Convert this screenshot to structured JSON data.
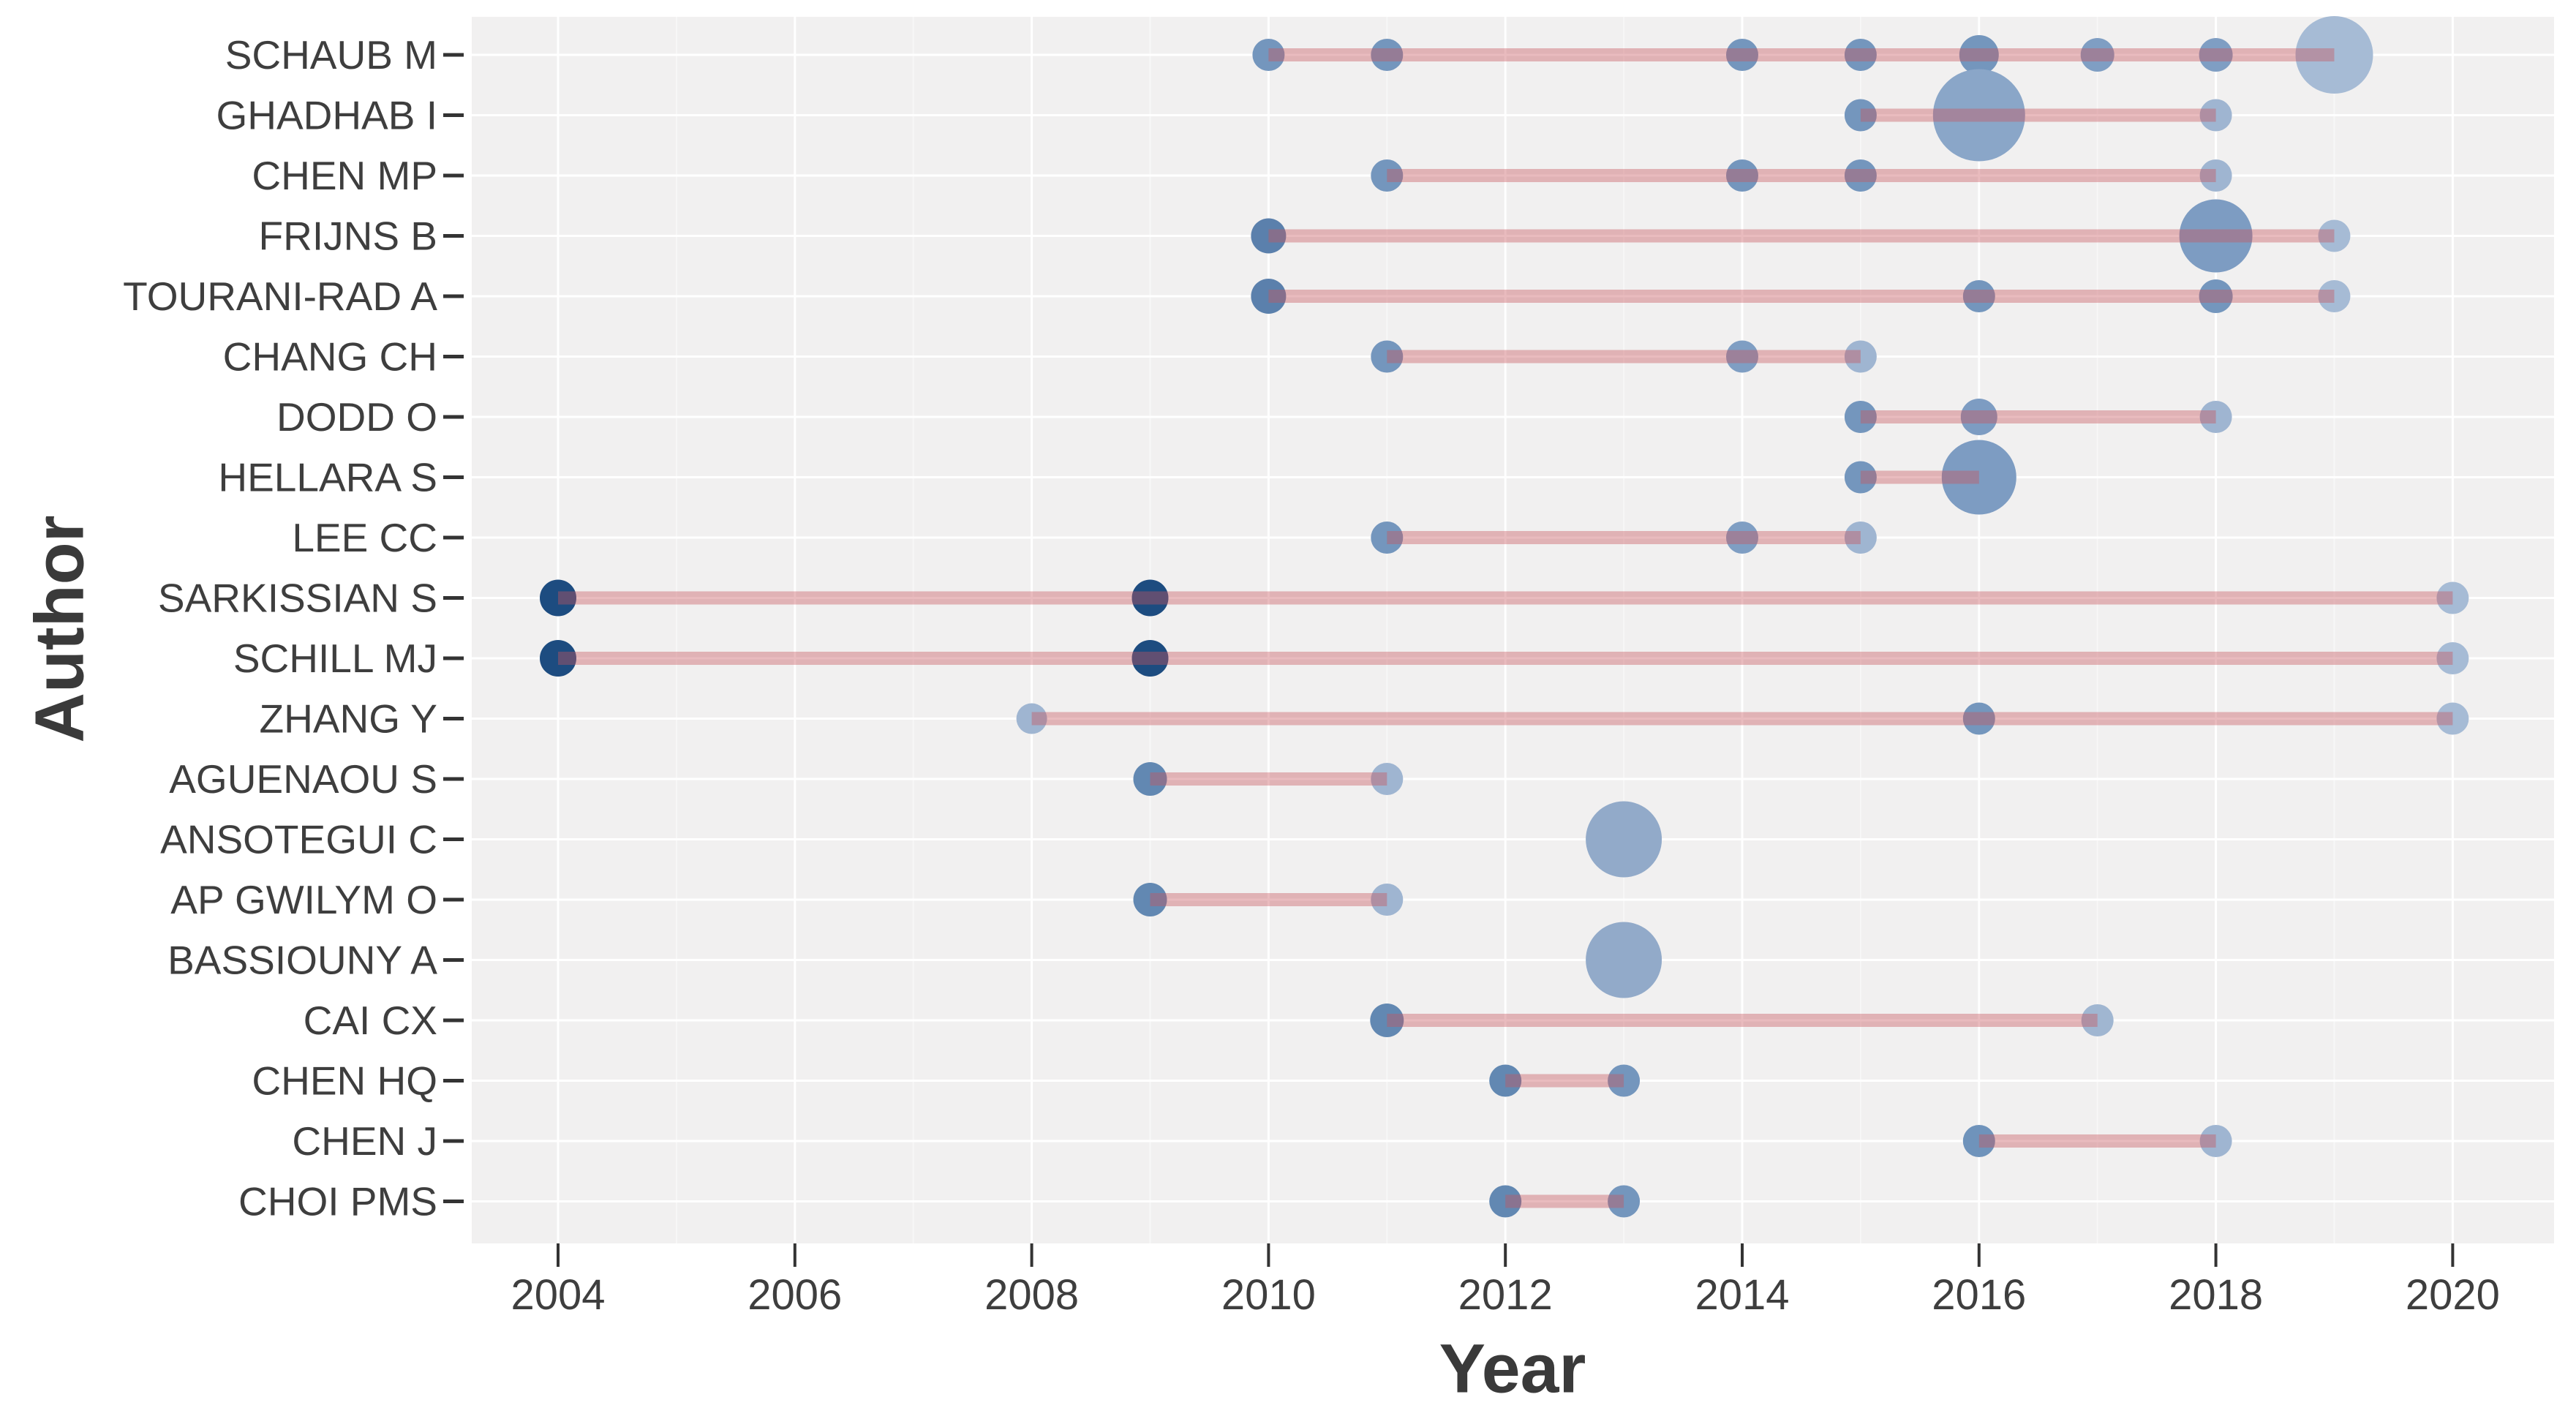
{
  "chart_data": {
    "type": "bubble_timeline",
    "title": "",
    "xlabel": "Year",
    "ylabel": "Author",
    "x_ticks": [
      2004,
      2006,
      2008,
      2010,
      2012,
      2014,
      2016,
      2018,
      2020
    ],
    "x_minor_ticks": [
      2005,
      2007,
      2009,
      2011,
      2013,
      2015,
      2017,
      2019
    ],
    "x_range": [
      2003.3,
      2020.9
    ],
    "grid": "white major/minor gridlines on light gray panel",
    "legend_position": "none",
    "authors": [
      {
        "name": "SCHAUB M",
        "span": [
          2010,
          2019
        ],
        "articles": [
          {
            "year": 2010,
            "radius": 22,
            "color": "#7496bd"
          },
          {
            "year": 2011,
            "radius": 22,
            "color": "#7496bd"
          },
          {
            "year": 2014,
            "radius": 22,
            "color": "#7496bd"
          },
          {
            "year": 2015,
            "radius": 22,
            "color": "#7496bd"
          },
          {
            "year": 2016,
            "radius": 27,
            "color": "#7496bd"
          },
          {
            "year": 2017,
            "radius": 23,
            "color": "#7f9ec3"
          },
          {
            "year": 2018,
            "radius": 23,
            "color": "#7f9ec3"
          },
          {
            "year": 2019,
            "radius": 53,
            "color": "#a6bbd5"
          }
        ]
      },
      {
        "name": "GHADHAB I",
        "span": [
          2015,
          2018
        ],
        "articles": [
          {
            "year": 2015,
            "radius": 22,
            "color": "#7496bd"
          },
          {
            "year": 2016,
            "radius": 63,
            "color": "#8aa6c8"
          },
          {
            "year": 2018,
            "radius": 22,
            "color": "#9fb5d1"
          }
        ]
      },
      {
        "name": "CHEN MP",
        "span": [
          2011,
          2018
        ],
        "articles": [
          {
            "year": 2011,
            "radius": 22,
            "color": "#7496bd"
          },
          {
            "year": 2014,
            "radius": 22,
            "color": "#7496bd"
          },
          {
            "year": 2015,
            "radius": 22,
            "color": "#7496bd"
          },
          {
            "year": 2018,
            "radius": 22,
            "color": "#9fb5d1"
          }
        ]
      },
      {
        "name": "FRIJNS B",
        "span": [
          2010,
          2019
        ],
        "articles": [
          {
            "year": 2010,
            "radius": 24,
            "color": "#5b80ac"
          },
          {
            "year": 2018,
            "radius": 50,
            "color": "#7d9cc2"
          },
          {
            "year": 2019,
            "radius": 22,
            "color": "#a6bbd5"
          }
        ]
      },
      {
        "name": "TOURANI-RAD A",
        "span": [
          2010,
          2019
        ],
        "articles": [
          {
            "year": 2010,
            "radius": 24,
            "color": "#5b80ac"
          },
          {
            "year": 2016,
            "radius": 22,
            "color": "#7496bd"
          },
          {
            "year": 2018,
            "radius": 23,
            "color": "#7496bd"
          },
          {
            "year": 2019,
            "radius": 22,
            "color": "#a6bbd5"
          }
        ]
      },
      {
        "name": "CHANG CH",
        "span": [
          2011,
          2015
        ],
        "articles": [
          {
            "year": 2011,
            "radius": 22,
            "color": "#7496bd"
          },
          {
            "year": 2014,
            "radius": 22,
            "color": "#7f9ec3"
          },
          {
            "year": 2015,
            "radius": 22,
            "color": "#9fb5d1"
          }
        ]
      },
      {
        "name": "DODD O",
        "span": [
          2015,
          2018
        ],
        "articles": [
          {
            "year": 2015,
            "radius": 22,
            "color": "#7496bd"
          },
          {
            "year": 2016,
            "radius": 25,
            "color": "#7d9cc2"
          },
          {
            "year": 2018,
            "radius": 22,
            "color": "#9fb5d1"
          }
        ]
      },
      {
        "name": "HELLARA S",
        "span": [
          2015,
          2016
        ],
        "articles": [
          {
            "year": 2015,
            "radius": 22,
            "color": "#7496bd"
          },
          {
            "year": 2016,
            "radius": 51,
            "color": "#7d9cc2"
          }
        ]
      },
      {
        "name": "LEE CC",
        "span": [
          2011,
          2015
        ],
        "articles": [
          {
            "year": 2011,
            "radius": 22,
            "color": "#7496bd"
          },
          {
            "year": 2014,
            "radius": 22,
            "color": "#7f9ec3"
          },
          {
            "year": 2015,
            "radius": 22,
            "color": "#9fb5d1"
          }
        ]
      },
      {
        "name": "SARKISSIAN S",
        "span": [
          2004,
          2020
        ],
        "articles": [
          {
            "year": 2004,
            "radius": 25,
            "color": "#1d4c80"
          },
          {
            "year": 2009,
            "radius": 25,
            "color": "#1d4c80"
          },
          {
            "year": 2020,
            "radius": 22,
            "color": "#a6bbd5"
          }
        ]
      },
      {
        "name": "SCHILL MJ",
        "span": [
          2004,
          2020
        ],
        "articles": [
          {
            "year": 2004,
            "radius": 25,
            "color": "#1d4c80"
          },
          {
            "year": 2009,
            "radius": 25,
            "color": "#1d4c80"
          },
          {
            "year": 2020,
            "radius": 22,
            "color": "#a6bbd5"
          }
        ]
      },
      {
        "name": "ZHANG Y",
        "span": [
          2008,
          2020
        ],
        "articles": [
          {
            "year": 2008,
            "radius": 21,
            "color": "#9fb5d1"
          },
          {
            "year": 2016,
            "radius": 22,
            "color": "#7496bd"
          },
          {
            "year": 2020,
            "radius": 22,
            "color": "#a6bbd5"
          }
        ]
      },
      {
        "name": "AGUENAOU S",
        "span": [
          2009,
          2011
        ],
        "articles": [
          {
            "year": 2009,
            "radius": 23,
            "color": "#6288b2"
          },
          {
            "year": 2011,
            "radius": 22,
            "color": "#9fb5d1"
          }
        ]
      },
      {
        "name": "ANSOTEGUI C",
        "span": null,
        "articles": [
          {
            "year": 2013,
            "radius": 52,
            "color": "#92aac9"
          }
        ]
      },
      {
        "name": "AP GWILYM O",
        "span": [
          2009,
          2011
        ],
        "articles": [
          {
            "year": 2009,
            "radius": 23,
            "color": "#6288b2"
          },
          {
            "year": 2011,
            "radius": 22,
            "color": "#9fb5d1"
          }
        ]
      },
      {
        "name": "BASSIOUNY A",
        "span": null,
        "articles": [
          {
            "year": 2013,
            "radius": 52,
            "color": "#92aac9"
          }
        ]
      },
      {
        "name": "CAI CX",
        "span": [
          2011,
          2017
        ],
        "articles": [
          {
            "year": 2011,
            "radius": 23,
            "color": "#6288b2"
          },
          {
            "year": 2017,
            "radius": 22,
            "color": "#a0b6d1"
          }
        ]
      },
      {
        "name": "CHEN HQ",
        "span": [
          2012,
          2013
        ],
        "articles": [
          {
            "year": 2012,
            "radius": 22,
            "color": "#6288b2"
          },
          {
            "year": 2013,
            "radius": 22,
            "color": "#7496bd"
          }
        ]
      },
      {
        "name": "CHEN J",
        "span": [
          2016,
          2018
        ],
        "articles": [
          {
            "year": 2016,
            "radius": 22,
            "color": "#6f93bb"
          },
          {
            "year": 2018,
            "radius": 22,
            "color": "#9fb5d1"
          }
        ]
      },
      {
        "name": "CHOI PMS",
        "span": [
          2012,
          2013
        ],
        "articles": [
          {
            "year": 2012,
            "radius": 22,
            "color": "#6288b2"
          },
          {
            "year": 2013,
            "radius": 22,
            "color": "#7496bd"
          }
        ]
      }
    ]
  },
  "style": {
    "panel_bg": "#f1f0f0",
    "grid_major": "rgba(255,255,255,0.95)",
    "grid_minor": "rgba(255,255,255,0.45)",
    "timeline_color": "rgba(199,86,92,0.40)",
    "tick_color": "#333333",
    "label_color": "#3e3e3e",
    "title_color": "#3a3a3a"
  }
}
